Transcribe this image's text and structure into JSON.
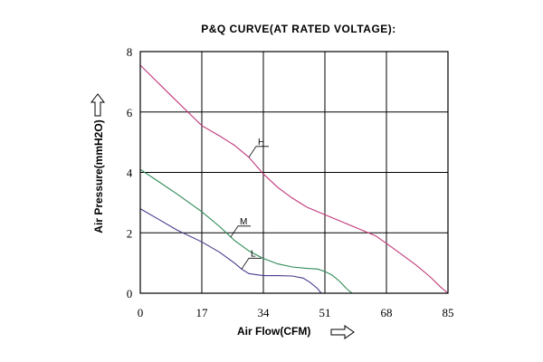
{
  "chart_data": {
    "type": "line",
    "title": "P&Q CURVE(AT RATED VOLTAGE):",
    "xlabel": "Air Flow(CFM)",
    "ylabel": "Air Pressure(mmH2O)",
    "xlim": [
      0,
      85
    ],
    "ylim": [
      0,
      8
    ],
    "xticks": [
      0,
      17,
      34,
      51,
      68,
      85
    ],
    "yticks": [
      0,
      2,
      4,
      6,
      8
    ],
    "grid": true,
    "series": [
      {
        "name": "H",
        "color": "#c0397a",
        "x": [
          0,
          8,
          17,
          22,
          26,
          30,
          34,
          38,
          42,
          46,
          51,
          55,
          60,
          65,
          68,
          72,
          76,
          80,
          83,
          85
        ],
        "y": [
          7.55,
          6.6,
          5.55,
          5.2,
          4.9,
          4.5,
          3.95,
          3.5,
          3.15,
          2.85,
          2.6,
          2.4,
          2.15,
          1.9,
          1.65,
          1.3,
          0.95,
          0.55,
          0.2,
          0
        ]
      },
      {
        "name": "M",
        "color": "#2e8b57",
        "x": [
          0,
          5,
          10,
          17,
          22,
          26,
          30,
          34,
          38,
          42,
          46,
          49,
          51,
          53,
          55,
          57,
          58.5
        ],
        "y": [
          4.1,
          3.7,
          3.3,
          2.7,
          2.2,
          1.75,
          1.4,
          1.15,
          0.97,
          0.87,
          0.82,
          0.8,
          0.72,
          0.6,
          0.4,
          0.15,
          0
        ]
      },
      {
        "name": "L",
        "color": "#4b3a8c",
        "x": [
          0,
          5,
          10,
          17,
          22,
          26,
          28,
          30,
          34,
          38,
          42,
          45,
          47,
          49,
          50
        ],
        "y": [
          2.8,
          2.45,
          2.1,
          1.7,
          1.35,
          1.0,
          0.8,
          0.65,
          0.58,
          0.58,
          0.57,
          0.5,
          0.35,
          0.15,
          0
        ]
      }
    ]
  }
}
